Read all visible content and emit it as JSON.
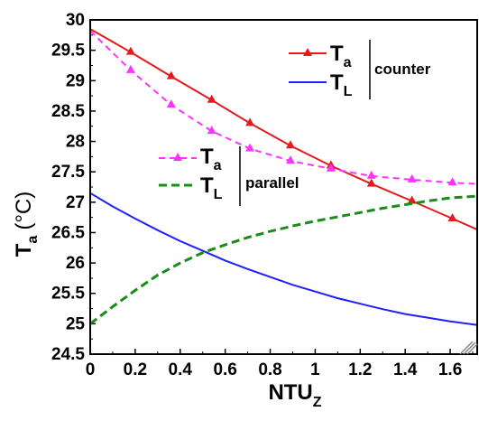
{
  "chart_data": {
    "type": "line",
    "xlabel_main": "NTU",
    "xlabel_sub": "Z",
    "ylabel_main": "T",
    "ylabel_sub": "a",
    "ylabel_unit": "(°C)",
    "xlim": [
      0,
      1.72
    ],
    "ylim": [
      24.5,
      30
    ],
    "xticks": [
      0,
      0.2,
      0.4,
      0.6,
      0.8,
      1,
      1.2,
      1.4,
      1.6
    ],
    "xtick_labels": [
      "0",
      "0.2",
      "0.4",
      "0.6",
      "0.8",
      "1",
      "1.2",
      "1.4",
      "1.6"
    ],
    "yticks": [
      24.5,
      25,
      25.5,
      26,
      26.5,
      27,
      27.5,
      28,
      28.5,
      29,
      29.5,
      30
    ],
    "ytick_labels": [
      "24.5",
      "25",
      "25.5",
      "26",
      "26.5",
      "27",
      "27.5",
      "28",
      "28.5",
      "29",
      "29.5",
      "30"
    ],
    "series": [
      {
        "key": "ta_counter",
        "color": "#e41a1c",
        "dash": "solid",
        "marker": "triangle",
        "x": [
          0,
          0.18,
          0.36,
          0.54,
          0.71,
          0.89,
          1.07,
          1.25,
          1.43,
          1.61,
          1.72
        ],
        "y": [
          29.85,
          29.47,
          29.07,
          28.68,
          28.3,
          27.93,
          27.6,
          27.3,
          27.02,
          26.73,
          26.55
        ]
      },
      {
        "key": "tl_counter",
        "color": "#1f1fff",
        "dash": "solid",
        "marker": "none",
        "x": [
          0,
          0.1,
          0.2,
          0.3,
          0.4,
          0.5,
          0.6,
          0.7,
          0.8,
          0.9,
          1.0,
          1.1,
          1.2,
          1.3,
          1.4,
          1.5,
          1.6,
          1.72
        ],
        "y": [
          27.15,
          26.93,
          26.73,
          26.54,
          26.36,
          26.2,
          26.04,
          25.9,
          25.77,
          25.64,
          25.53,
          25.42,
          25.33,
          25.24,
          25.16,
          25.1,
          25.04,
          24.98
        ]
      },
      {
        "key": "ta_parallel",
        "color": "#ff33ff",
        "dash": "dashed",
        "marker": "triangle",
        "x": [
          0,
          0.18,
          0.36,
          0.54,
          0.71,
          0.89,
          1.07,
          1.25,
          1.43,
          1.61,
          1.72
        ],
        "y": [
          29.82,
          29.17,
          28.6,
          28.17,
          27.88,
          27.68,
          27.55,
          27.43,
          27.37,
          27.32,
          27.3
        ]
      },
      {
        "key": "tl_parallel",
        "color": "#1a8c1a",
        "dash": "dashed",
        "marker": "none",
        "x": [
          0,
          0.1,
          0.2,
          0.3,
          0.4,
          0.5,
          0.6,
          0.7,
          0.8,
          0.9,
          1.0,
          1.1,
          1.2,
          1.3,
          1.4,
          1.5,
          1.6,
          1.72
        ],
        "y": [
          25.0,
          25.28,
          25.55,
          25.8,
          26.0,
          26.17,
          26.3,
          26.42,
          26.52,
          26.61,
          26.69,
          26.76,
          26.83,
          26.9,
          26.96,
          27.02,
          27.07,
          27.1
        ]
      }
    ],
    "legend": {
      "counter_group_label": "counter",
      "parallel_group_label": "parallel",
      "ta_main": "T",
      "ta_sub": "a",
      "tl_main": "T",
      "tl_sub": "L"
    }
  }
}
